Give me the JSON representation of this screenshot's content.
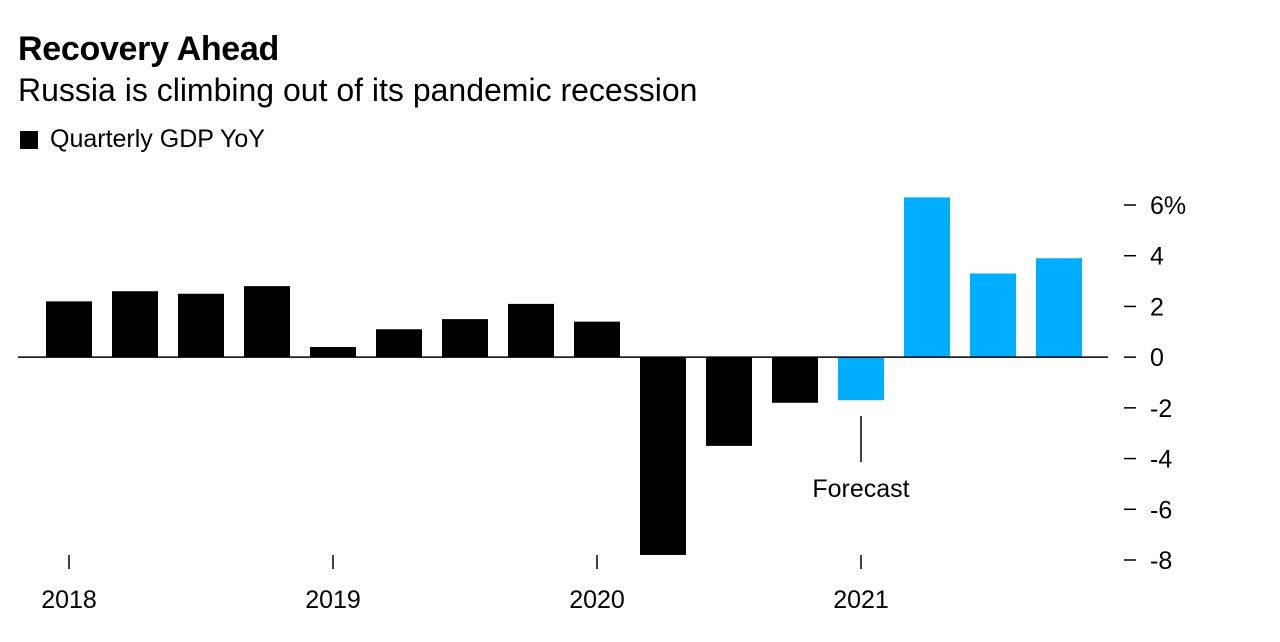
{
  "header": {
    "title": "Recovery Ahead",
    "subtitle": "Russia is climbing out of its pandemic recession"
  },
  "legend": {
    "label": "Quarterly GDP YoY",
    "color": "#000000"
  },
  "annotation": {
    "label": "Forecast"
  },
  "colors": {
    "actual": "#000000",
    "forecast": "#00aeff"
  },
  "chart_data": {
    "type": "bar",
    "title": "Recovery Ahead",
    "subtitle": "Russia is climbing out of its pandemic recession",
    "categories": [
      "2018 Q1",
      "2018 Q2",
      "2018 Q3",
      "2018 Q4",
      "2019 Q1",
      "2019 Q2",
      "2019 Q3",
      "2019 Q4",
      "2020 Q1",
      "2020 Q2",
      "2020 Q3",
      "2020 Q4",
      "2021 Q1",
      "2021 Q2",
      "2021 Q3",
      "2021 Q4"
    ],
    "series": [
      {
        "name": "Quarterly GDP YoY",
        "values": [
          2.2,
          2.6,
          2.5,
          2.8,
          0.4,
          1.1,
          1.5,
          2.1,
          1.4,
          -7.8,
          -3.5,
          -1.8,
          -1.7,
          6.3,
          3.3,
          3.9
        ],
        "forecast": [
          false,
          false,
          false,
          false,
          false,
          false,
          false,
          false,
          false,
          false,
          false,
          false,
          true,
          true,
          true,
          true
        ]
      }
    ],
    "x_tick_labels": [
      "2018",
      "2019",
      "2020",
      "2021"
    ],
    "y_ticks": [
      -8,
      -6,
      -4,
      -2,
      0,
      2,
      4,
      6
    ],
    "y_tick_labels": [
      "-8",
      "-6",
      "-4",
      "-2",
      "0",
      "2",
      "4",
      "6%"
    ],
    "ylim": [
      -8,
      6
    ],
    "y_axis_position": "right",
    "grid": false,
    "legend_position": "top-left"
  }
}
